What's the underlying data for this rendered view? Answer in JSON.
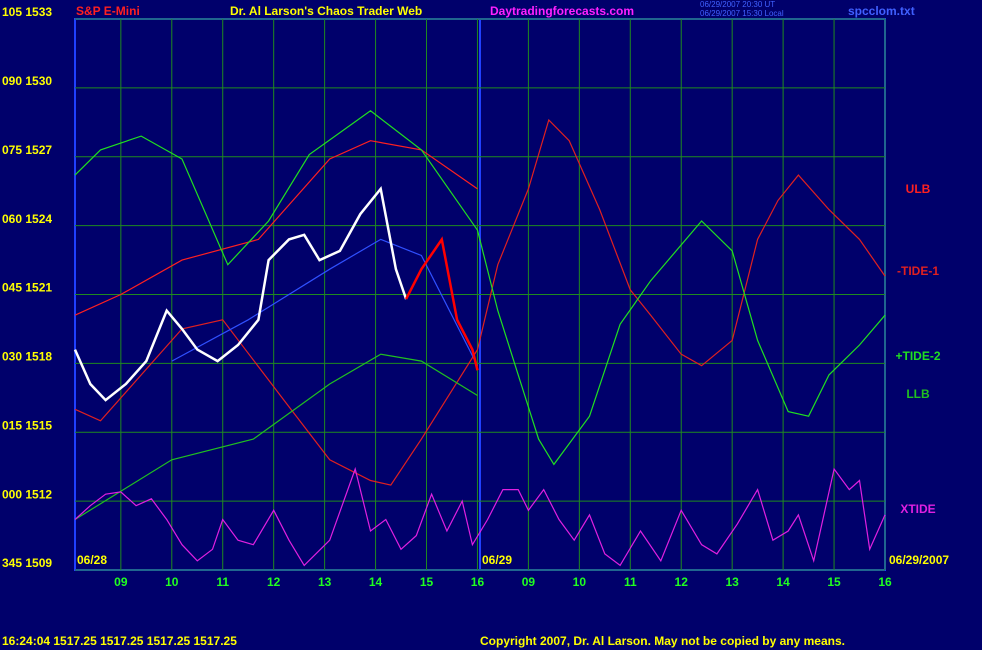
{
  "chart_data": {
    "type": "line",
    "symbol": "S&P E-Mini",
    "title": "Dr. Al Larson's Chaos Trader Web",
    "site": "Daytradingforecasts.com",
    "timestamps": [
      "06/29/2007 20:30 UT",
      "06/29/2007 15:30 Local"
    ],
    "file": "spcclom.txt",
    "date_labels": [
      "06/28",
      "06/29",
      "06/29/2007"
    ],
    "quote": "16:24:04  1517.25 1517.25 1517.25 1517.25",
    "copyright": "Copyright 2007, Dr. Al Larson. May not be copied by any means.",
    "xlim": [
      8.1,
      24.0
    ],
    "xticks": [
      {
        "value": 9,
        "label": "09"
      },
      10,
      11,
      12,
      13,
      14,
      15,
      16,
      {
        "value": 17,
        "label": "09"
      },
      {
        "value": 18,
        "label": "10"
      },
      {
        "value": 19,
        "label": "11"
      },
      {
        "value": 20,
        "label": "12"
      },
      {
        "value": 21,
        "label": "13"
      },
      {
        "value": 22,
        "label": "14"
      },
      {
        "value": 23,
        "label": "15"
      },
      {
        "value": 24,
        "label": "16"
      }
    ],
    "ylim": [
      1509,
      1533
    ],
    "yticks": [
      {
        "value": 1509,
        "label": "345 1509"
      },
      {
        "value": 1512,
        "label": "000 1512"
      },
      {
        "value": 1515,
        "label": "015 1515"
      },
      {
        "value": 1518,
        "label": "030 1518"
      },
      {
        "value": 1521,
        "label": "045 1521"
      },
      {
        "value": 1524,
        "label": "060 1524"
      },
      {
        "value": 1527,
        "label": "075 1527"
      },
      {
        "value": 1530,
        "label": "090 1530"
      },
      {
        "value": 1533,
        "label": "105 1533"
      }
    ],
    "grid": true,
    "series": [
      {
        "name": "ULB",
        "color": "#ff2020",
        "x": [
          8.1,
          9.0,
          10.2,
          11.7,
          13.1,
          13.9,
          14.9,
          16.0
        ],
        "values": [
          1520.1,
          1521.0,
          1522.5,
          1523.4,
          1526.9,
          1527.7,
          1527.3,
          1525.6
        ]
      },
      {
        "name": "-TIDE-1",
        "color": "#e02020",
        "x": [
          8.1,
          8.6,
          10.2,
          11.0,
          12.2,
          13.1,
          13.9,
          14.3,
          14.9,
          16.0,
          16.4,
          17.0,
          17.4,
          17.8,
          18.4,
          19.0,
          19.4,
          20.0,
          20.4,
          21.0,
          21.5,
          21.9,
          22.3,
          22.9,
          23.5,
          24.0
        ],
        "values": [
          1516.0,
          1515.5,
          1519.5,
          1519.9,
          1516.4,
          1513.8,
          1512.9,
          1512.7,
          1514.7,
          1518.6,
          1522.3,
          1525.6,
          1528.6,
          1527.7,
          1524.7,
          1521.2,
          1520.1,
          1518.4,
          1517.9,
          1519.0,
          1523.4,
          1525.1,
          1526.2,
          1524.7,
          1523.4,
          1521.8
        ]
      },
      {
        "name": "+TIDE-2",
        "color": "#20e020",
        "x": [
          8.1,
          8.6,
          9.4,
          10.2,
          11.1,
          11.9,
          12.7,
          13.9,
          14.9,
          16.0,
          16.4,
          17.2,
          17.5,
          18.2,
          18.8,
          19.4,
          20.4,
          21.0,
          21.5,
          22.1,
          22.5,
          22.9,
          23.5,
          24.0
        ],
        "values": [
          1526.2,
          1527.3,
          1527.9,
          1526.9,
          1522.3,
          1524.2,
          1527.1,
          1529.0,
          1527.3,
          1523.8,
          1520.3,
          1514.7,
          1513.6,
          1515.7,
          1519.7,
          1521.6,
          1524.2,
          1522.9,
          1519.0,
          1515.9,
          1515.7,
          1517.5,
          1518.8,
          1520.1
        ]
      },
      {
        "name": "LLB",
        "color": "#20c020",
        "x": [
          8.1,
          10.0,
          11.6,
          13.1,
          14.1,
          14.9,
          16.0
        ],
        "values": [
          1511.2,
          1513.8,
          1514.7,
          1517.1,
          1518.4,
          1518.1,
          1516.6
        ]
      },
      {
        "name": "XTIDE",
        "color": "#e020e0",
        "x": [
          8.1,
          8.4,
          8.7,
          9.0,
          9.3,
          9.6,
          9.9,
          10.2,
          10.5,
          10.8,
          11.0,
          11.3,
          11.6,
          12.0,
          12.3,
          12.6,
          13.1,
          13.6,
          13.9,
          14.2,
          14.5,
          14.8,
          15.1,
          15.4,
          15.7,
          15.9,
          16.2,
          16.5,
          16.8,
          17.0,
          17.3,
          17.6,
          17.9,
          18.2,
          18.5,
          18.8,
          19.2,
          19.6,
          20.0,
          20.4,
          20.7,
          21.1,
          21.5,
          21.8,
          22.1,
          22.3,
          22.6,
          23.0,
          23.3,
          23.5,
          23.7,
          24.0
        ],
        "values": [
          1511.2,
          1511.8,
          1512.3,
          1512.4,
          1511.8,
          1512.1,
          1511.2,
          1510.1,
          1509.4,
          1509.9,
          1511.2,
          1510.3,
          1510.1,
          1511.6,
          1510.3,
          1509.2,
          1510.3,
          1513.4,
          1510.7,
          1511.2,
          1509.9,
          1510.5,
          1512.3,
          1510.7,
          1512.0,
          1510.1,
          1511.2,
          1512.5,
          1512.5,
          1511.6,
          1512.5,
          1511.2,
          1510.3,
          1511.4,
          1509.7,
          1509.2,
          1510.7,
          1509.4,
          1511.6,
          1510.1,
          1509.7,
          1511.0,
          1512.5,
          1510.3,
          1510.7,
          1511.4,
          1509.4,
          1513.4,
          1512.5,
          1512.9,
          1509.9,
          1511.4
        ]
      },
      {
        "color": "#3050ff",
        "x": [
          10.0,
          11.5,
          13.1,
          14.1,
          14.9,
          16.0
        ],
        "values": [
          1518.1,
          1519.9,
          1522.1,
          1523.4,
          1522.7,
          1517.9
        ]
      },
      {
        "color": "#ffffff",
        "x": [
          8.1,
          8.4,
          8.7,
          9.1,
          9.5,
          9.9,
          10.2,
          10.5,
          10.9,
          11.3,
          11.7,
          11.9,
          12.3,
          12.6,
          12.9,
          13.3,
          13.7,
          14.1,
          14.4,
          14.6
        ],
        "values": [
          1518.6,
          1517.1,
          1516.4,
          1517.1,
          1518.1,
          1520.3,
          1519.5,
          1518.6,
          1518.1,
          1518.8,
          1519.9,
          1522.5,
          1523.4,
          1523.6,
          1522.5,
          1522.9,
          1524.5,
          1525.6,
          1522.1,
          1520.8
        ]
      },
      {
        "color": "#ff0000",
        "x": [
          14.6,
          14.9,
          15.3,
          15.6,
          15.9,
          16.0
        ],
        "values": [
          1520.8,
          1522.1,
          1523.4,
          1519.9,
          1518.6,
          1517.7
        ]
      }
    ]
  }
}
